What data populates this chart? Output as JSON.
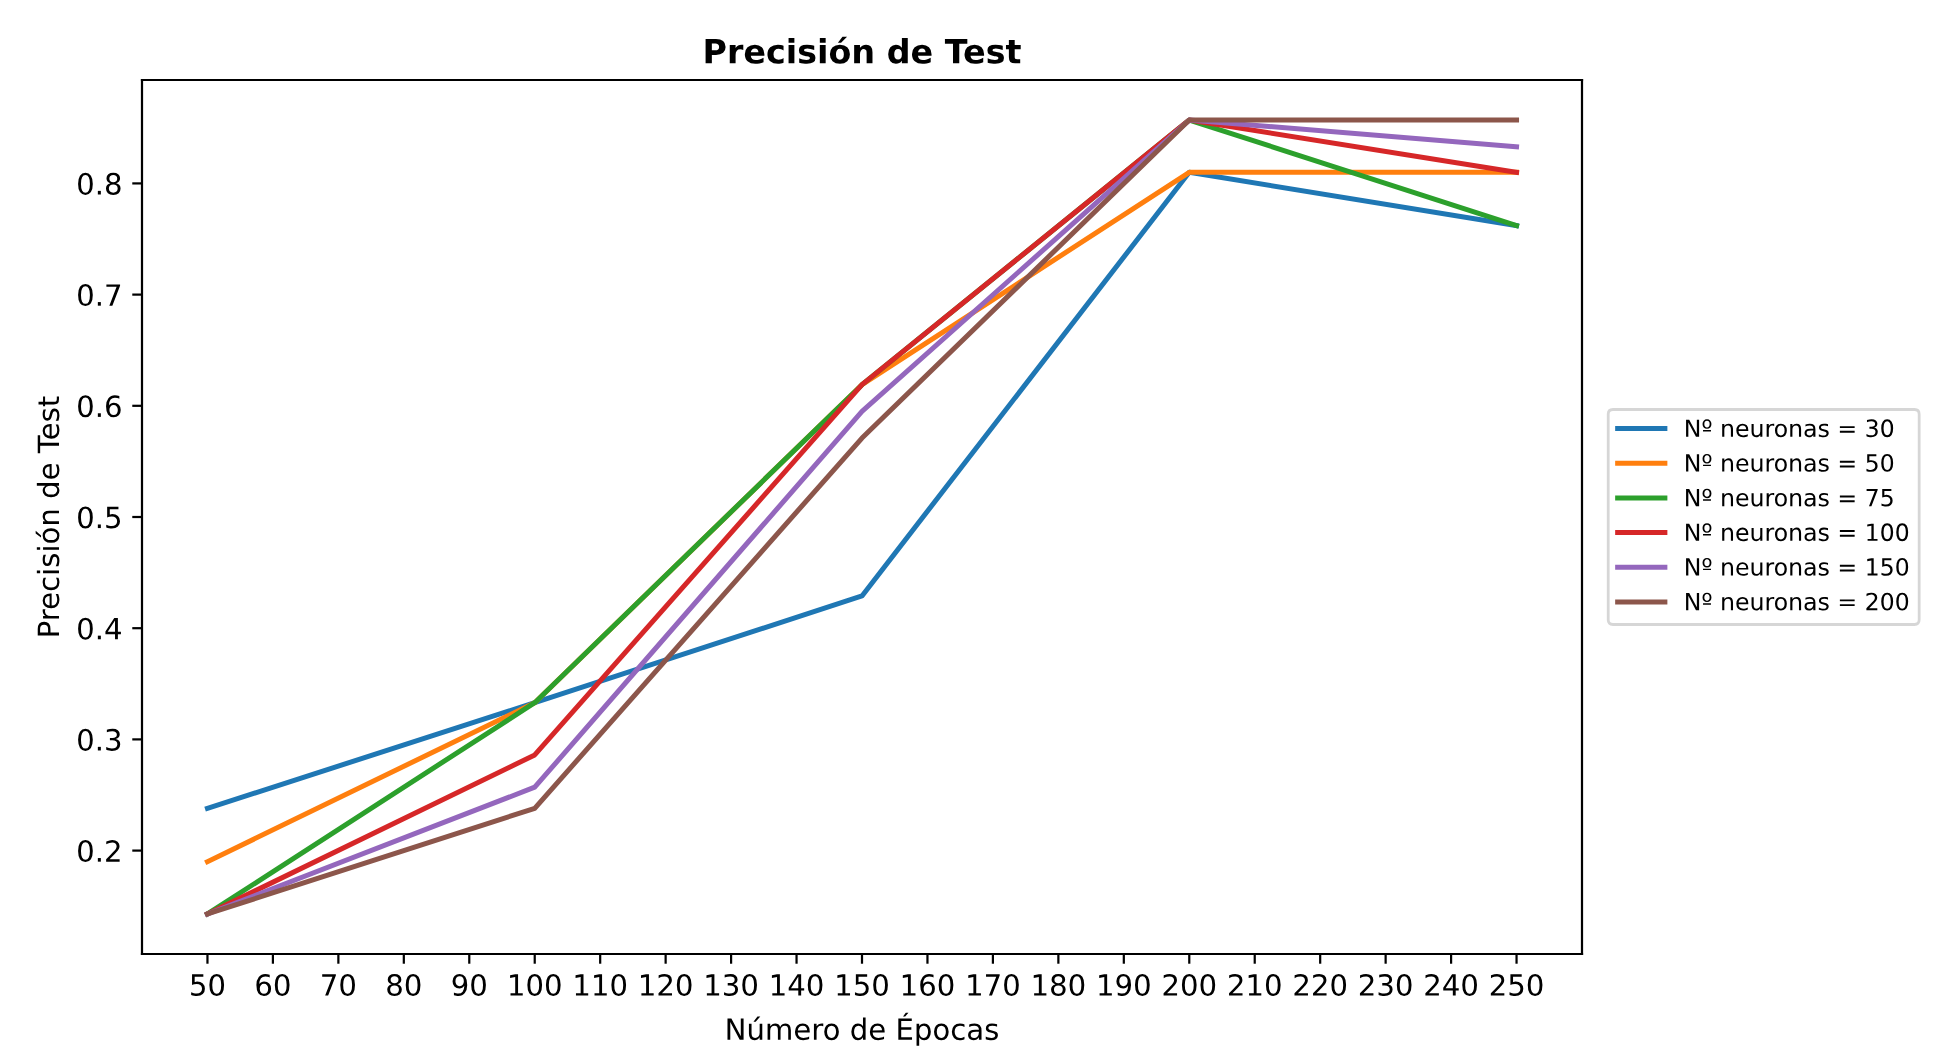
{
  "chart_data": {
    "type": "line",
    "title": "Precisión de Test",
    "xlabel": "Número de Épocas",
    "ylabel": "Precisión de Test",
    "x": [
      50,
      100,
      150,
      200,
      250
    ],
    "series": [
      {
        "name": "Nº neuronas = 30",
        "color": "#1f77b4",
        "values": [
          0.238,
          0.333,
          0.429,
          0.81,
          0.762
        ]
      },
      {
        "name": "Nº neuronas = 50",
        "color": "#ff7f0e",
        "values": [
          0.19,
          0.333,
          0.619,
          0.81,
          0.81
        ]
      },
      {
        "name": "Nº neuronas = 75",
        "color": "#2ca02c",
        "values": [
          0.143,
          0.333,
          0.619,
          0.857,
          0.762
        ]
      },
      {
        "name": "Nº neuronas = 100",
        "color": "#d62728",
        "values": [
          0.143,
          0.286,
          0.619,
          0.857,
          0.81
        ]
      },
      {
        "name": "Nº neuronas = 150",
        "color": "#9467bd",
        "values": [
          0.143,
          0.257,
          0.595,
          0.857,
          0.833
        ]
      },
      {
        "name": "Nº neuronas = 200",
        "color": "#8c564b",
        "values": [
          0.143,
          0.238,
          0.571,
          0.857,
          0.857
        ]
      }
    ],
    "xlim": [
      40,
      260
    ],
    "xticks": [
      50,
      60,
      70,
      80,
      90,
      100,
      110,
      120,
      130,
      140,
      150,
      160,
      170,
      180,
      190,
      200,
      210,
      220,
      230,
      240,
      250
    ],
    "ylim": [
      0.107,
      0.893
    ],
    "yticks": [
      0.2,
      0.3,
      0.4,
      0.5,
      0.6,
      0.7,
      0.8
    ],
    "grid": false,
    "legend": "right"
  }
}
